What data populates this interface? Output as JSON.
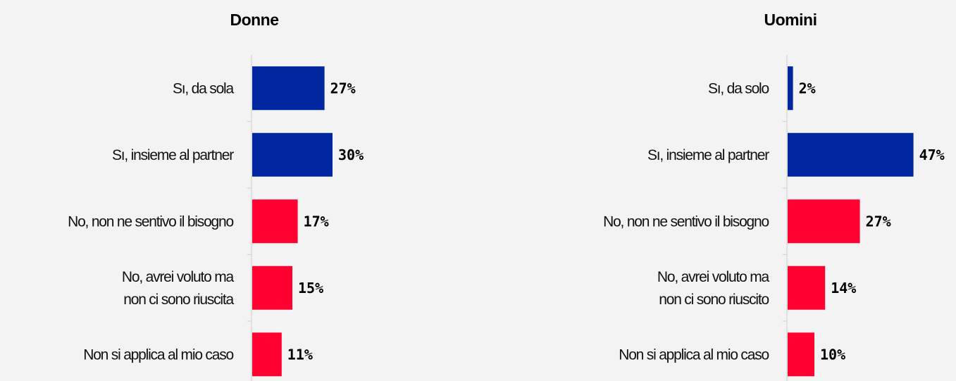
{
  "colors": {
    "yes": "#0026a0",
    "no": "#ff0030"
  },
  "chart_data": [
    {
      "type": "bar",
      "orientation": "horizontal",
      "title": "Donne",
      "categories": [
        "Sı, da sola",
        "Sı, insieme al partner",
        "No, non ne sentivo il bisogno",
        "No, avrei voluto ma non ci sono riuscita",
        "Non si applica al mio caso"
      ],
      "label_lines": [
        [
          "Sı, da sola"
        ],
        [
          "Sı, insieme al partner"
        ],
        [
          "No, non ne sentivo il bisogno"
        ],
        [
          "No, avrei voluto ma",
          "non ci sono riuscita"
        ],
        [
          "Non si applica al mio caso"
        ]
      ],
      "values": [
        27,
        30,
        17,
        15,
        11
      ],
      "value_labels": [
        "27%",
        "30%",
        "17%",
        "15%",
        "11%"
      ],
      "bar_colors": [
        "#0026a0",
        "#0026a0",
        "#ff0030",
        "#ff0030",
        "#ff0030"
      ],
      "xlim": [
        0,
        100
      ]
    },
    {
      "type": "bar",
      "orientation": "horizontal",
      "title": "Uomini",
      "categories": [
        "Sı, da solo",
        "Sı, insieme al partner",
        "No, non ne sentivo il bisogno",
        "No, avrei voluto ma non ci sono riuscito",
        "Non si applica al mio caso"
      ],
      "label_lines": [
        [
          "Sı, da solo"
        ],
        [
          "Sı, insieme al partner"
        ],
        [
          "No, non ne sentivo il bisogno"
        ],
        [
          "No, avrei voluto ma",
          "non ci sono riuscito"
        ],
        [
          "Non si applica al mio caso"
        ]
      ],
      "values": [
        2,
        47,
        27,
        14,
        10
      ],
      "value_labels": [
        "2%",
        "47%",
        "27%",
        "14%",
        "10%"
      ],
      "bar_colors": [
        "#0026a0",
        "#0026a0",
        "#ff0030",
        "#ff0030",
        "#ff0030"
      ],
      "xlim": [
        0,
        100
      ]
    }
  ]
}
